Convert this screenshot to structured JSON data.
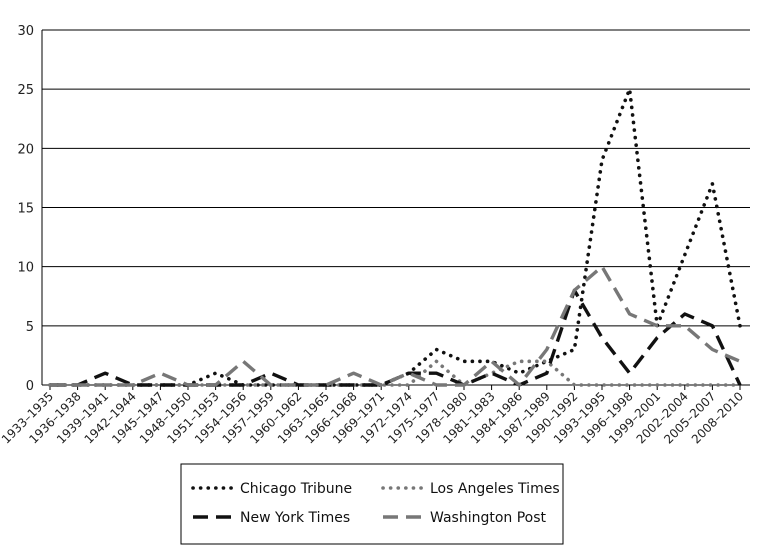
{
  "chart_data": {
    "type": "line",
    "title": "",
    "xlabel": "",
    "ylabel": "",
    "ylim": [
      0,
      30
    ],
    "yticks": [
      0,
      5,
      10,
      15,
      20,
      25,
      30
    ],
    "grid": "horizontal",
    "legend_position": "bottom-center",
    "categories": [
      "1933–1935",
      "1936–1938",
      "1939–1941",
      "1942–1944",
      "1945–1947",
      "1948–1950",
      "1951–1953",
      "1954–1956",
      "1957–1959",
      "1960–1962",
      "1963–1965",
      "1966–1968",
      "1969–1971",
      "1972–1974",
      "1975–1977",
      "1978–1980",
      "1981–1983",
      "1984–1986",
      "1987–1989",
      "1990–1992",
      "1993–1995",
      "1996–1998",
      "1999–2001",
      "2002–2004",
      "2005–2007",
      "2008–2010"
    ],
    "series": [
      {
        "name": "Chicago Tribune",
        "color": "#111111",
        "dash": "dotted-heavy",
        "values": [
          0,
          0,
          0,
          0,
          0,
          0,
          1,
          0,
          0,
          0,
          0,
          0,
          0,
          1,
          3,
          2,
          2,
          1,
          2,
          3,
          19,
          25,
          5,
          11,
          17,
          5
        ]
      },
      {
        "name": "Los Angeles Times",
        "color": "#777777",
        "dash": "dotted",
        "values": [
          0,
          0,
          0,
          0,
          0,
          0,
          0,
          0,
          0,
          0,
          0,
          0,
          0,
          0,
          2,
          0,
          1,
          2,
          2,
          0,
          0,
          0,
          0,
          0,
          0,
          0
        ]
      },
      {
        "name": "New York Times",
        "color": "#111111",
        "dash": "long-dash",
        "values": [
          0,
          0,
          1,
          0,
          0,
          0,
          0,
          0,
          1,
          0,
          0,
          0,
          0,
          1,
          1,
          0,
          1,
          0,
          1,
          8,
          4,
          1,
          4,
          6,
          5,
          0
        ]
      },
      {
        "name": "Washington Post",
        "color": "#777777",
        "dash": "long-dash-gray",
        "values": [
          0,
          0,
          0,
          0,
          1,
          0,
          0,
          2,
          0,
          0,
          0,
          1,
          0,
          1,
          0,
          0,
          2,
          0,
          3,
          8,
          10,
          6,
          5,
          5,
          3,
          2
        ]
      }
    ]
  }
}
